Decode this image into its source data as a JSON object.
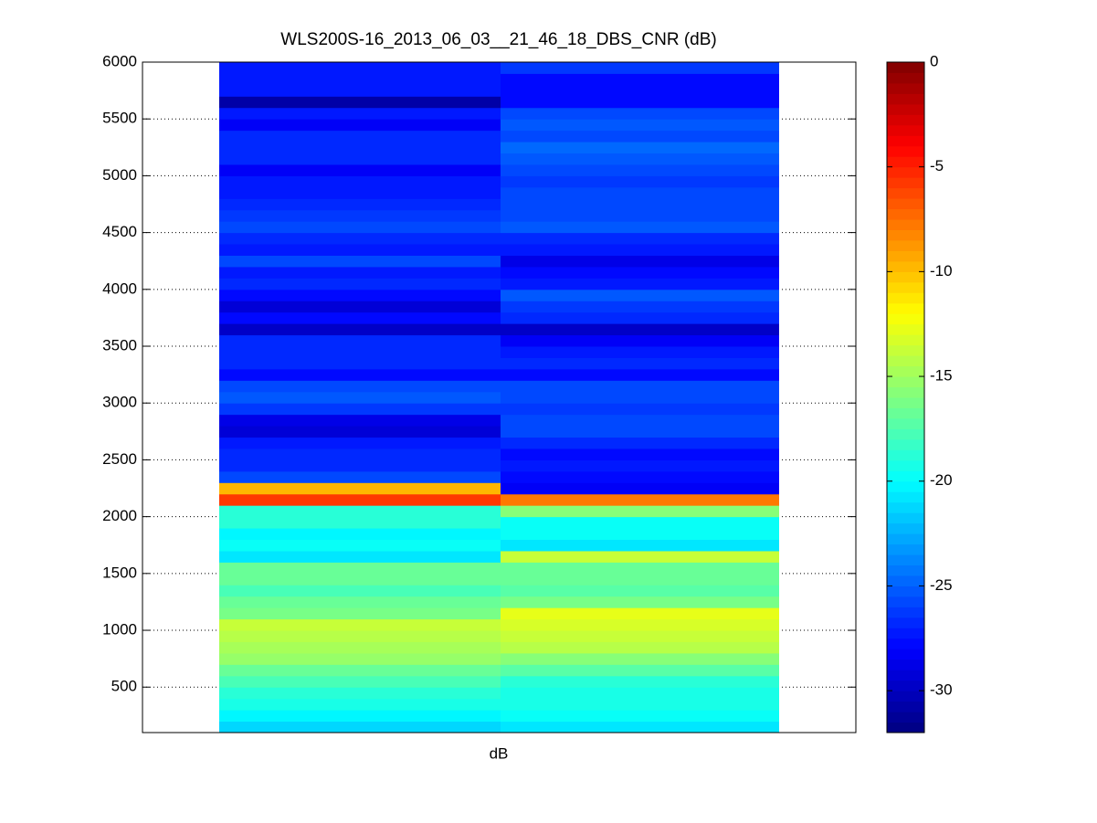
{
  "chart_data": {
    "type": "heatmap",
    "title": "WLS200S-16_2013_06_03__21_46_18_DBS_CNR (dB)",
    "xlabel": "dB",
    "y": [
      150,
      250,
      350,
      450,
      550,
      650,
      750,
      850,
      950,
      1050,
      1150,
      1250,
      1350,
      1450,
      1550,
      1650,
      1750,
      1850,
      1950,
      2050,
      2150,
      2250,
      2350,
      2450,
      2550,
      2650,
      2750,
      2850,
      2950,
      3050,
      3150,
      3250,
      3350,
      3450,
      3550,
      3650,
      3750,
      3850,
      3950,
      4050,
      4150,
      4250,
      4350,
      4450,
      4550,
      4650,
      4750,
      4850,
      4950,
      5050,
      5150,
      5250,
      5350,
      5450,
      5550,
      5650,
      5750,
      5850,
      5950
    ],
    "z": [
      [
        -21.5,
        -20.5,
        -19.5,
        -19,
        -18,
        -17,
        -15.5,
        -15,
        -14.5,
        -14,
        -16.5,
        -17,
        -18,
        -17,
        -17,
        -21,
        -20,
        -20.5,
        -19,
        -19,
        -6,
        -10,
        -26,
        -27,
        -27,
        -27.5,
        -29.5,
        -29,
        -26.5,
        -25.5,
        -26,
        -28,
        -27,
        -27,
        -27,
        -30,
        -28,
        -29.5,
        -28,
        -27,
        -27.5,
        -26,
        -27.5,
        -27,
        -26,
        -26.5,
        -27,
        -27.5,
        -27.5,
        -28.5,
        -27,
        -27,
        -27,
        -28.5,
        -27.5,
        -31,
        -27.5,
        -27.5,
        -27.5
      ],
      [
        -21,
        -20,
        -19.5,
        -19.5,
        -19,
        -17.5,
        -16,
        -14.5,
        -14,
        -13.5,
        -13,
        -16.5,
        -17.5,
        -17,
        -17,
        -14,
        -21,
        -20,
        -20,
        -16,
        -8,
        -28.5,
        -28,
        -27.5,
        -28,
        -27,
        -26,
        -26,
        -26.5,
        -26,
        -26,
        -28,
        -27,
        -27.5,
        -28.5,
        -30,
        -27,
        -26.5,
        -25.5,
        -27.5,
        -28,
        -29,
        -27.5,
        -27,
        -25.5,
        -26,
        -26,
        -26,
        -26.5,
        -26,
        -25.5,
        -25,
        -26,
        -25.5,
        -26,
        -28,
        -28,
        -28,
        -26.5
      ]
    ],
    "ylim": [
      100,
      6000
    ],
    "yticks": [
      500,
      1000,
      1500,
      2000,
      2500,
      3000,
      3500,
      4000,
      4500,
      5000,
      5500,
      6000
    ],
    "grid": true,
    "colormap": "jet",
    "clim": [
      -32,
      0
    ],
    "cticks": [
      -30,
      -25,
      -20,
      -15,
      -10,
      -5,
      0
    ]
  }
}
